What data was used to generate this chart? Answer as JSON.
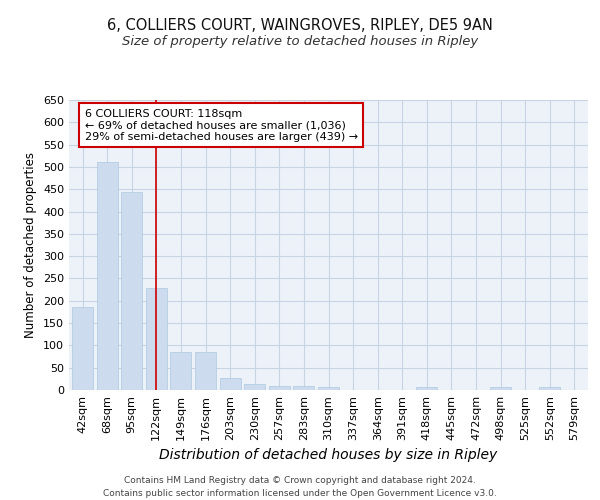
{
  "title_line1": "6, COLLIERS COURT, WAINGROVES, RIPLEY, DE5 9AN",
  "title_line2": "Size of property relative to detached houses in Ripley",
  "xlabel": "Distribution of detached houses by size in Ripley",
  "ylabel": "Number of detached properties",
  "categories": [
    "42sqm",
    "68sqm",
    "95sqm",
    "122sqm",
    "149sqm",
    "176sqm",
    "203sqm",
    "230sqm",
    "257sqm",
    "283sqm",
    "310sqm",
    "337sqm",
    "364sqm",
    "391sqm",
    "418sqm",
    "445sqm",
    "472sqm",
    "498sqm",
    "525sqm",
    "552sqm",
    "579sqm"
  ],
  "values": [
    185,
    510,
    443,
    228,
    85,
    85,
    28,
    14,
    8,
    8,
    6,
    0,
    0,
    0,
    6,
    0,
    0,
    6,
    0,
    6,
    0
  ],
  "bar_color": "#ccdcee",
  "bar_edge_color": "#aec8df",
  "vline_index": 3,
  "vline_color": "#cc0000",
  "annotation_box_text": "6 COLLIERS COURT: 118sqm\n← 69% of detached houses are smaller (1,036)\n29% of semi-detached houses are larger (439) →",
  "annotation_box_color": "#cc0000",
  "annotation_box_bg": "#ffffff",
  "ylim": [
    0,
    650
  ],
  "yticks": [
    0,
    50,
    100,
    150,
    200,
    250,
    300,
    350,
    400,
    450,
    500,
    550,
    600,
    650
  ],
  "footnote": "Contains HM Land Registry data © Crown copyright and database right 2024.\nContains public sector information licensed under the Open Government Licence v3.0.",
  "background_color": "#edf2f9",
  "grid_color": "#c8d4e4",
  "title_fontsize": 10.5,
  "subtitle_fontsize": 9.5,
  "xlabel_fontsize": 10,
  "ylabel_fontsize": 8.5,
  "tick_fontsize": 8,
  "footnote_fontsize": 6.5,
  "annotation_fontsize": 8
}
